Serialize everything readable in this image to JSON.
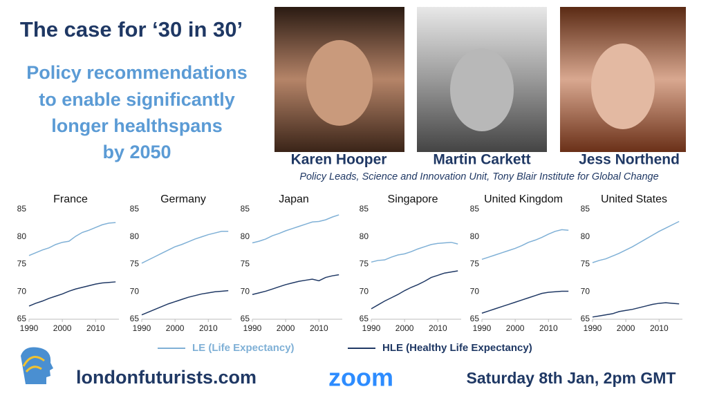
{
  "header": {
    "title": "The case for ‘30 in 30’",
    "subtitle": [
      "Policy recommendations",
      "to enable significantly",
      "longer healthspans",
      "by 2050"
    ]
  },
  "speakers": {
    "names": [
      "Karen Hooper",
      "Martin Carkett",
      "Jess Northend"
    ],
    "caption": "Policy Leads, Science and Innovation Unit, Tony Blair Institute for Global Change"
  },
  "legend": [
    {
      "name": "LE (Life Expectancy)",
      "color": "#7fb0d6"
    },
    {
      "name": "HLE (Healthy Life Expectancy)",
      "color": "#1f3864"
    }
  ],
  "footer": {
    "site": "londonfuturists.com",
    "platform": "zoom",
    "date": "Saturday 8th Jan, 2pm GMT"
  },
  "chart_data": [
    {
      "type": "line",
      "title": "France",
      "x": [
        1990,
        1992,
        1994,
        1996,
        1998,
        2000,
        2002,
        2004,
        2006,
        2008,
        2010,
        2012,
        2014,
        2016
      ],
      "xlim": [
        1990,
        2017
      ],
      "xticks": [
        1990,
        2000,
        2010
      ],
      "ylim": [
        65,
        85
      ],
      "yticks": [
        65,
        70,
        75,
        80,
        85
      ],
      "series": [
        {
          "color": "#7fb0d6",
          "values": [
            76.6,
            77.1,
            77.6,
            78.0,
            78.6,
            79.0,
            79.2,
            80.1,
            80.8,
            81.2,
            81.7,
            82.2,
            82.5,
            82.6
          ]
        },
        {
          "color": "#1f3864",
          "values": [
            67.4,
            67.9,
            68.3,
            68.8,
            69.2,
            69.6,
            70.1,
            70.5,
            70.8,
            71.1,
            71.4,
            71.6,
            71.7,
            71.8
          ]
        }
      ]
    },
    {
      "type": "line",
      "title": "Germany",
      "x": [
        1990,
        1992,
        1994,
        1996,
        1998,
        2000,
        2002,
        2004,
        2006,
        2008,
        2010,
        2012,
        2014,
        2016
      ],
      "xlim": [
        1990,
        2017
      ],
      "xticks": [
        1990,
        2000,
        2010
      ],
      "ylim": [
        65,
        85
      ],
      "yticks": [
        65,
        70,
        75,
        80,
        85
      ],
      "series": [
        {
          "color": "#7fb0d6",
          "values": [
            75.2,
            75.8,
            76.4,
            77.0,
            77.6,
            78.2,
            78.6,
            79.1,
            79.6,
            80.0,
            80.4,
            80.7,
            81.0,
            81.0
          ]
        },
        {
          "color": "#1f3864",
          "values": [
            65.8,
            66.3,
            66.8,
            67.3,
            67.8,
            68.2,
            68.6,
            69.0,
            69.3,
            69.6,
            69.8,
            70.0,
            70.1,
            70.2
          ]
        }
      ]
    },
    {
      "type": "line",
      "title": "Japan",
      "x": [
        1990,
        1992,
        1994,
        1996,
        1998,
        2000,
        2002,
        2004,
        2006,
        2008,
        2010,
        2012,
        2014,
        2016
      ],
      "xlim": [
        1990,
        2017
      ],
      "xticks": [
        1990,
        2000,
        2010
      ],
      "ylim": [
        65,
        85
      ],
      "yticks": [
        65,
        70,
        75,
        80,
        85
      ],
      "series": [
        {
          "color": "#7fb0d6",
          "values": [
            78.9,
            79.2,
            79.6,
            80.2,
            80.6,
            81.1,
            81.5,
            81.9,
            82.3,
            82.7,
            82.8,
            83.1,
            83.6,
            84.0
          ]
        },
        {
          "color": "#1f3864",
          "values": [
            69.5,
            69.8,
            70.1,
            70.5,
            70.9,
            71.3,
            71.6,
            71.9,
            72.1,
            72.3,
            72.0,
            72.6,
            72.9,
            73.1
          ]
        }
      ]
    },
    {
      "type": "line",
      "title": "Singapore",
      "x": [
        1990,
        1992,
        1994,
        1996,
        1998,
        2000,
        2002,
        2004,
        2006,
        2008,
        2010,
        2012,
        2014,
        2016
      ],
      "xlim": [
        1990,
        2017
      ],
      "xticks": [
        1990,
        2000,
        2010
      ],
      "ylim": [
        65,
        85
      ],
      "yticks": [
        65,
        70,
        75,
        80,
        85
      ],
      "series": [
        {
          "color": "#7fb0d6",
          "values": [
            75.4,
            75.7,
            75.8,
            76.3,
            76.7,
            76.9,
            77.3,
            77.8,
            78.2,
            78.6,
            78.8,
            78.9,
            79.0,
            78.7
          ]
        },
        {
          "color": "#1f3864",
          "values": [
            66.9,
            67.6,
            68.3,
            68.9,
            69.5,
            70.2,
            70.8,
            71.3,
            71.9,
            72.6,
            73.0,
            73.4,
            73.6,
            73.8
          ]
        }
      ]
    },
    {
      "type": "line",
      "title": "United Kingdom",
      "x": [
        1990,
        1992,
        1994,
        1996,
        1998,
        2000,
        2002,
        2004,
        2006,
        2008,
        2010,
        2012,
        2014,
        2016
      ],
      "xlim": [
        1990,
        2017
      ],
      "xticks": [
        1990,
        2000,
        2010
      ],
      "ylim": [
        65,
        85
      ],
      "yticks": [
        65,
        70,
        75,
        80,
        85
      ],
      "series": [
        {
          "color": "#7fb0d6",
          "values": [
            75.9,
            76.3,
            76.7,
            77.1,
            77.5,
            77.9,
            78.4,
            79.0,
            79.4,
            79.9,
            80.5,
            81.0,
            81.3,
            81.2
          ]
        },
        {
          "color": "#1f3864",
          "values": [
            66.1,
            66.5,
            66.9,
            67.3,
            67.7,
            68.1,
            68.5,
            68.9,
            69.3,
            69.7,
            69.9,
            70.0,
            70.1,
            70.1
          ]
        }
      ]
    },
    {
      "type": "line",
      "title": "United States",
      "x": [
        1990,
        1992,
        1994,
        1996,
        1998,
        2000,
        2002,
        2004,
        2006,
        2008,
        2010,
        2012,
        2014,
        2016
      ],
      "xlim": [
        1990,
        2017
      ],
      "xticks": [
        1990,
        2000,
        2010
      ],
      "ylim": [
        65,
        85
      ],
      "yticks": [
        65,
        70,
        75,
        80,
        85
      ],
      "series": [
        {
          "color": "#7fb0d6",
          "values": [
            75.3,
            75.7,
            76.0,
            76.5,
            77.0,
            77.6,
            78.2,
            78.9,
            79.6,
            80.3,
            81.0,
            81.6,
            82.2,
            82.8
          ]
        },
        {
          "color": "#1f3864",
          "values": [
            65.4,
            65.6,
            65.8,
            66.0,
            66.4,
            66.6,
            66.8,
            67.1,
            67.4,
            67.7,
            67.9,
            68.0,
            67.9,
            67.8
          ]
        }
      ]
    }
  ]
}
